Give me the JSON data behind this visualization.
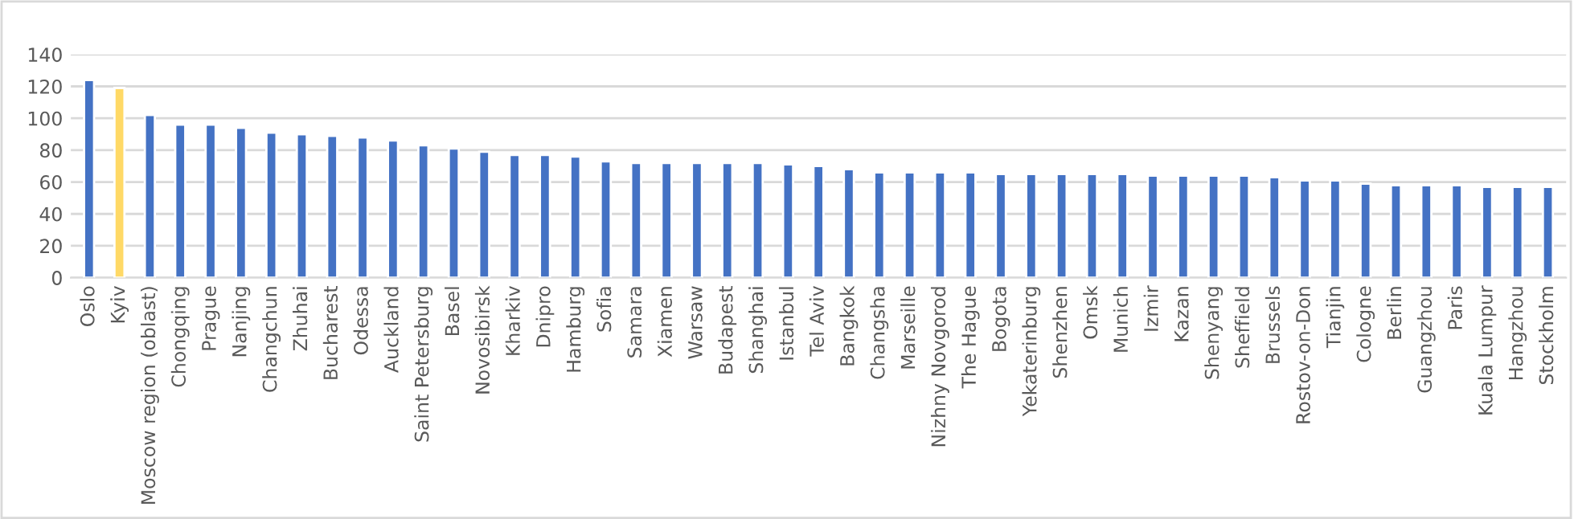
{
  "chart_data": {
    "type": "bar",
    "categories": [
      "Oslo",
      "Kyiv",
      "Moscow region (oblast)",
      "Chongqing",
      "Prague",
      "Nanjing",
      "Changchun",
      "Zhuhai",
      "Bucharest",
      "Odessa",
      "Auckland",
      "Saint Petersburg",
      "Basel",
      "Novosibirsk",
      "Kharkiv",
      "Dnipro",
      "Hamburg",
      "Sofia",
      "Samara",
      "Xiamen",
      "Warsaw",
      "Budapest",
      "Shanghai",
      "Istanbul",
      "Tel Aviv",
      "Bangkok",
      "Changsha",
      "Marseille",
      "Nizhny Novgorod",
      "The Hague",
      "Bogota",
      "Yekaterinburg",
      "Shenzhen",
      "Omsk",
      "Munich",
      "Izmir",
      "Kazan",
      "Shenyang",
      "Sheffield",
      "Brussels",
      "Rostov-on-Don",
      "Tianjin",
      "Cologne",
      "Berlin",
      "Guangzhou",
      "Paris",
      "Kuala Lumpur",
      "Hangzhou",
      "Stockholm"
    ],
    "values": [
      124,
      119,
      102,
      96,
      96,
      94,
      91,
      90,
      89,
      88,
      86,
      83,
      81,
      79,
      77,
      77,
      76,
      73,
      72,
      72,
      72,
      72,
      72,
      71,
      70,
      68,
      66,
      66,
      66,
      66,
      65,
      65,
      65,
      65,
      65,
      64,
      64,
      64,
      64,
      63,
      61,
      61,
      59,
      58,
      58,
      58,
      57,
      57,
      57
    ],
    "colors": [
      "#4472c4",
      "#ffd966",
      "#4472c4",
      "#4472c4",
      "#4472c4",
      "#4472c4",
      "#4472c4",
      "#4472c4",
      "#4472c4",
      "#4472c4",
      "#4472c4",
      "#4472c4",
      "#4472c4",
      "#4472c4",
      "#4472c4",
      "#4472c4",
      "#4472c4",
      "#4472c4",
      "#4472c4",
      "#4472c4",
      "#4472c4",
      "#4472c4",
      "#4472c4",
      "#4472c4",
      "#4472c4",
      "#4472c4",
      "#4472c4",
      "#4472c4",
      "#4472c4",
      "#4472c4",
      "#4472c4",
      "#4472c4",
      "#4472c4",
      "#4472c4",
      "#4472c4",
      "#4472c4",
      "#4472c4",
      "#4472c4",
      "#4472c4",
      "#4472c4",
      "#4472c4",
      "#4472c4",
      "#4472c4",
      "#4472c4",
      "#4472c4",
      "#4472c4",
      "#4472c4",
      "#4472c4",
      "#4472c4"
    ],
    "ylim": [
      0,
      140
    ],
    "yticks": [
      0,
      20,
      40,
      60,
      80,
      100,
      120,
      140
    ],
    "grid": "y",
    "legend": false
  }
}
